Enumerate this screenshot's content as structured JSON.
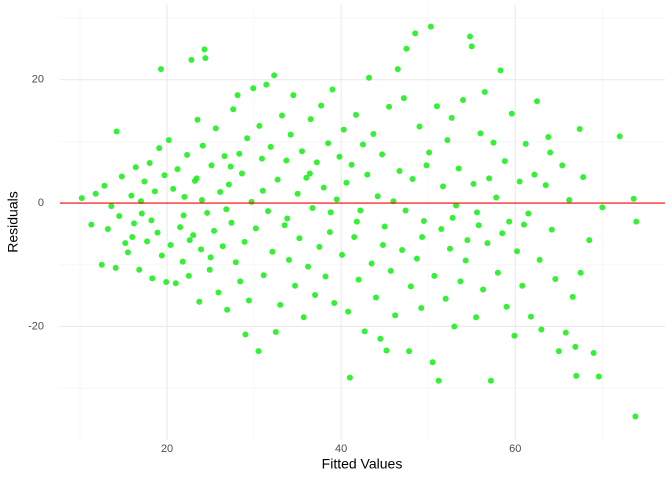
{
  "chart_data": {
    "type": "scatter",
    "xlabel": "Fitted Values",
    "ylabel": "Residuals",
    "xlim": [
      7.7,
      77.2
    ],
    "ylim": [
      -38.4,
      32.1
    ],
    "xticks": [
      20,
      40,
      60
    ],
    "yticks": [
      -20,
      0,
      20
    ],
    "xminor": [
      10,
      30,
      50,
      70
    ],
    "yminor": [
      -30,
      -10,
      10,
      30
    ],
    "grid": true,
    "color": "#1ef01e",
    "hline": 0,
    "hline_color": "#ff0000",
    "x": [
      10.2,
      11.3,
      11.8,
      12.5,
      12.8,
      13.2,
      13.6,
      14.1,
      14.5,
      14.8,
      15.2,
      15.5,
      15.9,
      16.2,
      16.4,
      16.8,
      17.1,
      17.4,
      17.7,
      18,
      18.3,
      18.6,
      18.9,
      19.1,
      19.4,
      19.7,
      19.9,
      14.2,
      19.3,
      16,
      17,
      18.2,
      20.2,
      20.4,
      20.7,
      21,
      21.2,
      21.5,
      21.8,
      22,
      22.3,
      22.5,
      22.8,
      23,
      23.2,
      23.5,
      23.7,
      23.9,
      24.1,
      24.3,
      24.4,
      24.6,
      24.9,
      25.1,
      25.4,
      25.6,
      25.9,
      26.1,
      26.4,
      26.6,
      26.9,
      27.1,
      27.4,
      27.6,
      27.9,
      28.1,
      28.4,
      28.6,
      28.9,
      29.2,
      29.4,
      29.7,
      29.9,
      21.9,
      23.4,
      25,
      26.8,
      28.3,
      29,
      22.6,
      24,
      27.3,
      30.2,
      30.5,
      30.6,
      30.9,
      31.1,
      31.4,
      31.6,
      31.9,
      32.1,
      32.3,
      32.5,
      32.7,
      33,
      33.2,
      33.5,
      33.7,
      34,
      34.2,
      34.5,
      34.7,
      35,
      35.2,
      35.5,
      35.7,
      36,
      36.2,
      36.5,
      36.7,
      37,
      37.2,
      37.5,
      37.7,
      38,
      38.2,
      38.5,
      38.7,
      39,
      39.2,
      39.5,
      39.8,
      31,
      33.8,
      36.4,
      38.8,
      40.1,
      40.3,
      40.6,
      40.8,
      41,
      41.2,
      41.5,
      41.7,
      42,
      42.2,
      42.5,
      42.7,
      43,
      43.2,
      43.5,
      43.7,
      44,
      44.2,
      44.5,
      44.7,
      45,
      45.2,
      45.5,
      45.7,
      46,
      46.2,
      46.5,
      46.7,
      47,
      47.2,
      47.5,
      47.8,
      48,
      48.2,
      48.5,
      48.7,
      49,
      49.2,
      49.5,
      49.8,
      41.8,
      44.8,
      47.4,
      49.3,
      50.1,
      50.3,
      50.5,
      50.7,
      51,
      51.2,
      51.5,
      51.7,
      52,
      52.2,
      52.5,
      52.7,
      53,
      53.2,
      53.5,
      53.7,
      54,
      54.3,
      54.8,
      55,
      55.2,
      55.5,
      55.8,
      56,
      56.3,
      56.5,
      56.8,
      57.2,
      57.5,
      57.8,
      58,
      58.3,
      58.5,
      58.8,
      59,
      59.3,
      59.6,
      59.9,
      55.6,
      57,
      52.8,
      54.5,
      60.2,
      60.5,
      60.8,
      61.2,
      61.5,
      61.8,
      62.2,
      62.5,
      62.8,
      63,
      63.5,
      63.8,
      64.2,
      64.6,
      65,
      65.4,
      65.8,
      66.2,
      66.6,
      66.9,
      67,
      67.4,
      67.5,
      67.8,
      68.5,
      69,
      69.6,
      70,
      72,
      73.6,
      73.9,
      73.8,
      64,
      61
    ],
    "values": [
      0.8,
      -3.5,
      1.5,
      -10,
      2.8,
      -4.2,
      -0.5,
      -10.5,
      -2.1,
      4.3,
      -6.5,
      -8,
      1.2,
      -3.3,
      5.8,
      -10.8,
      -1.7,
      3.5,
      -6.2,
      6.5,
      -12.2,
      1.9,
      -4.8,
      8.9,
      -8.5,
      4.5,
      -12.8,
      11.6,
      21.7,
      -5.5,
      0.3,
      -2.8,
      10.2,
      -6.8,
      2.3,
      -13,
      5.5,
      -3.9,
      -9.5,
      1,
      7.8,
      -11.8,
      23.2,
      -5.2,
      3.6,
      13.5,
      -16,
      -7.5,
      9.3,
      24.9,
      23.5,
      -1.6,
      -10.8,
      6.1,
      -4.5,
      12.1,
      -14.5,
      1.8,
      -7,
      7.6,
      -17.3,
      3,
      -3.2,
      15.2,
      -9.6,
      17.5,
      -12.7,
      4.8,
      -6.3,
      10.5,
      -15.8,
      0.2,
      18.6,
      -2,
      4,
      -8.8,
      -1,
      8,
      -21.3,
      -6,
      0.5,
      5.9,
      -4.1,
      -24,
      12.5,
      7.2,
      -11.7,
      19.2,
      -1.3,
      9.1,
      -7.9,
      20.7,
      -20.9,
      3.8,
      -16.5,
      14.2,
      -3.6,
      6.9,
      -9.2,
      11.1,
      17.5,
      -13.4,
      1.5,
      -5.7,
      8.4,
      -18.5,
      4.1,
      -10.3,
      13.6,
      -0.8,
      -14.9,
      6.6,
      -7.1,
      15.8,
      2.5,
      -11.9,
      9.7,
      -4.7,
      18.4,
      -16.2,
      0.6,
      7.5,
      2,
      -2.5,
      4.8,
      -1.5,
      -8.4,
      11.9,
      3.3,
      -17.6,
      -28.3,
      6.2,
      -5.5,
      14.3,
      -12.4,
      -1.2,
      9.5,
      -20.8,
      4.6,
      20.3,
      -9.8,
      11.2,
      -15.3,
      1.1,
      -22,
      7.9,
      -3.8,
      -23.9,
      15.6,
      -11,
      0.3,
      -18.2,
      21.7,
      5.2,
      -7.6,
      17,
      25,
      -24,
      -13.5,
      3.9,
      27.5,
      -9,
      12.4,
      -17,
      -2.9,
      6.1,
      -3,
      -6.8,
      -1.2,
      -5.5,
      8.2,
      28.6,
      -25.8,
      -11.8,
      15.7,
      -28.8,
      -4.2,
      2.7,
      -15.5,
      10.2,
      -7.4,
      13.8,
      -20,
      -0.4,
      5.6,
      -12.7,
      16.7,
      -9.3,
      27,
      25.4,
      3.1,
      -18.5,
      -3.6,
      11.3,
      -14,
      18,
      -6.5,
      -28.8,
      9.8,
      0.9,
      -11.3,
      21.5,
      -4.9,
      6.8,
      -16.8,
      -3,
      14.5,
      -21.5,
      -1.5,
      4,
      -2.4,
      -6,
      -7.8,
      3.5,
      -13.4,
      9.6,
      -1.7,
      -18.4,
      4.6,
      16.5,
      -9.2,
      -20.5,
      2.9,
      10.7,
      -4.3,
      -12.3,
      -24,
      6.1,
      -21,
      0.5,
      -15.2,
      -23.3,
      -28,
      12,
      -11.3,
      4.2,
      -6,
      -24.3,
      -28.1,
      -0.7,
      10.8,
      0.7,
      -3,
      -34.6,
      8.2,
      -3.5
    ]
  }
}
